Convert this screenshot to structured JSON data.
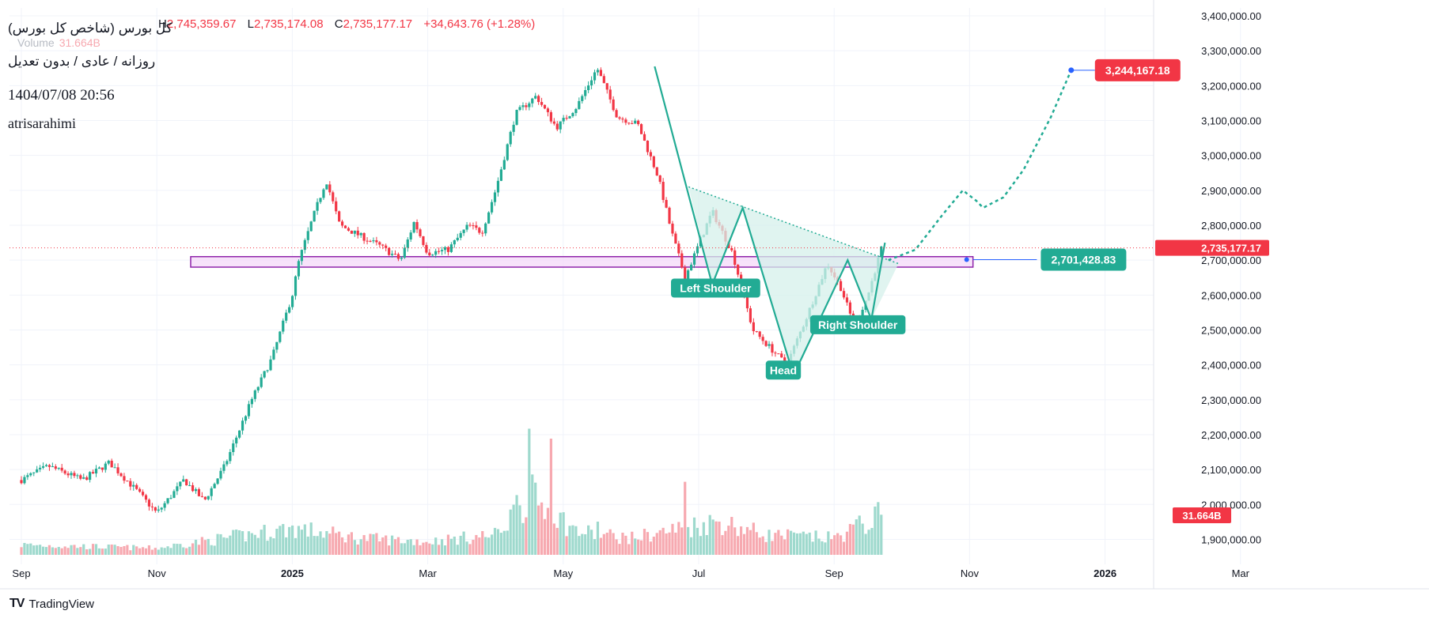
{
  "header": {
    "title": "کل بورس (شاخص کل بورس)",
    "interval": "روزانه / عادی / بدون تعدیل",
    "ohlc": {
      "h_label": "H",
      "h": "2,745,359.67",
      "l_label": "L",
      "l": "2,735,174.08",
      "c_label": "C",
      "c": "2,735,177.17",
      "change": "+34,643.76 (+1.28%)"
    },
    "volume_label": "Volume",
    "volume_value": "31.664B"
  },
  "watermark": {
    "datetime": "1404/07/08 20:56",
    "author": "atrisarahimi"
  },
  "brand": {
    "logo_mark": "TV",
    "name": "TradingView"
  },
  "colors": {
    "up": "#22ab94",
    "down": "#f23645",
    "up_vol": "#9ed9cd",
    "down_vol": "#f7a9b0",
    "pattern": "#22ab94",
    "fill": "#d6f0eb",
    "zone": "#8e24aa",
    "zone_fill": "#f3d6f8",
    "target_label": "#f23645",
    "level_label": "#22ab94",
    "grid": "#f0f3fa"
  },
  "chart_data": {
    "type": "candlestick",
    "title": "کل بورس (شاخص کل بورس)",
    "ylim": [
      1850000,
      3400000
    ],
    "yticks": [
      "3,400,000.00",
      "3,300,000.00",
      "3,200,000.00",
      "3,100,000.00",
      "3,000,000.00",
      "2,900,000.00",
      "2,800,000.00",
      "2,700,000.00",
      "2,600,000.00",
      "2,500,000.00",
      "2,400,000.00",
      "2,300,000.00",
      "2,200,000.00",
      "2,100,000.00",
      "2,000,000.00",
      "1,900,000.00"
    ],
    "ytick_values": [
      3400000,
      3300000,
      3200000,
      3100000,
      3000000,
      2900000,
      2800000,
      2700000,
      2600000,
      2500000,
      2400000,
      2300000,
      2200000,
      2100000,
      2000000,
      1900000
    ],
    "xticks": [
      {
        "label": "Sep",
        "month": 0,
        "bold": false
      },
      {
        "label": "Nov",
        "month": 2,
        "bold": false
      },
      {
        "label": "2025",
        "month": 4,
        "bold": true
      },
      {
        "label": "Mar",
        "month": 6,
        "bold": false
      },
      {
        "label": "May",
        "month": 8,
        "bold": false
      },
      {
        "label": "Jul",
        "month": 10,
        "bold": false
      },
      {
        "label": "Sep",
        "month": 12,
        "bold": false
      },
      {
        "label": "Nov",
        "month": 14,
        "bold": false
      },
      {
        "label": "2026",
        "month": 16,
        "bold": true
      },
      {
        "label": "Mar",
        "month": 18,
        "bold": false
      }
    ],
    "price_path": [
      [
        0.0,
        2070000
      ],
      [
        0.4,
        2110000
      ],
      [
        0.9,
        2070000
      ],
      [
        1.3,
        2120000
      ],
      [
        1.5,
        2080000
      ],
      [
        1.7,
        2040000
      ],
      [
        2.0,
        1975000
      ],
      [
        2.4,
        2070000
      ],
      [
        2.7,
        2010000
      ],
      [
        3.0,
        2110000
      ],
      [
        3.4,
        2300000
      ],
      [
        3.7,
        2420000
      ],
      [
        4.0,
        2600000
      ],
      [
        4.1,
        2700000
      ],
      [
        4.3,
        2820000
      ],
      [
        4.5,
        2930000
      ],
      [
        4.7,
        2800000
      ],
      [
        5.0,
        2770000
      ],
      [
        5.3,
        2740000
      ],
      [
        5.6,
        2700000
      ],
      [
        5.8,
        2810000
      ],
      [
        6.0,
        2720000
      ],
      [
        6.3,
        2730000
      ],
      [
        6.6,
        2800000
      ],
      [
        6.8,
        2780000
      ],
      [
        7.0,
        2900000
      ],
      [
        7.3,
        3120000
      ],
      [
        7.6,
        3170000
      ],
      [
        7.9,
        3080000
      ],
      [
        8.2,
        3140000
      ],
      [
        8.5,
        3250000
      ],
      [
        8.8,
        3110000
      ],
      [
        9.1,
        3090000
      ],
      [
        9.4,
        2940000
      ],
      [
        9.6,
        2780000
      ],
      [
        9.8,
        2650000
      ],
      [
        10.2,
        2840000
      ],
      [
        10.5,
        2720000
      ],
      [
        10.8,
        2500000
      ],
      [
        11.0,
        2460000
      ],
      [
        11.3,
        2400000
      ],
      [
        11.6,
        2540000
      ],
      [
        11.9,
        2690000
      ],
      [
        12.1,
        2620000
      ],
      [
        12.3,
        2510000
      ],
      [
        12.5,
        2600000
      ],
      [
        12.7,
        2735177
      ]
    ],
    "volume_range": [
      0,
      40
    ],
    "volume_path": [
      [
        0,
        3
      ],
      [
        2,
        2
      ],
      [
        3,
        5
      ],
      [
        4,
        8
      ],
      [
        5,
        5
      ],
      [
        6,
        4
      ],
      [
        7,
        6
      ],
      [
        7.5,
        18
      ],
      [
        8.2,
        7
      ],
      [
        9,
        5
      ],
      [
        10,
        9
      ],
      [
        10.3,
        10
      ],
      [
        11,
        6
      ],
      [
        12,
        5
      ],
      [
        12.7,
        12
      ]
    ],
    "volume_spikes": [
      [
        7.5,
        38
      ],
      [
        7.8,
        35
      ],
      [
        7.3,
        18
      ],
      [
        9.8,
        22
      ],
      [
        8.5,
        10
      ]
    ],
    "last_price": 2735177.17,
    "last_price_label": "2,735,177.17",
    "volume_last_label": "31.664B",
    "support_zone": [
      2680000,
      2710000
    ],
    "support_zone_x": [
      2.5,
      14.05
    ],
    "target": {
      "value": 3244167.18,
      "label": "3,244,167.18",
      "x": 15.5
    },
    "level": {
      "value": 2701428.83,
      "label": "2,701,428.83",
      "x": 14.0
    },
    "pattern": {
      "name": "Inverse Head and Shoulders",
      "points": [
        [
          9.35,
          3255000
        ],
        [
          10.2,
          2630000
        ],
        [
          10.65,
          2850000
        ],
        [
          11.4,
          2370000
        ],
        [
          12.2,
          2700000
        ],
        [
          12.55,
          2530000
        ],
        [
          12.75,
          2750000
        ]
      ],
      "neckline": [
        [
          9.85,
          2910000
        ],
        [
          12.95,
          2690000
        ]
      ],
      "labels": [
        {
          "text": "Left Shoulder",
          "x": 10.25,
          "y": 2620000
        },
        {
          "text": "Head",
          "x": 11.25,
          "y": 2385000
        },
        {
          "text": "Right Shoulder",
          "x": 12.35,
          "y": 2515000
        }
      ]
    },
    "projection": [
      [
        12.8,
        2700000
      ],
      [
        13.2,
        2730000
      ],
      [
        13.6,
        2830000
      ],
      [
        13.9,
        2900000
      ],
      [
        14.1,
        2870000
      ],
      [
        14.2,
        2850000
      ],
      [
        14.5,
        2880000
      ],
      [
        14.8,
        2960000
      ],
      [
        15.2,
        3110000
      ],
      [
        15.5,
        3244167
      ]
    ]
  }
}
